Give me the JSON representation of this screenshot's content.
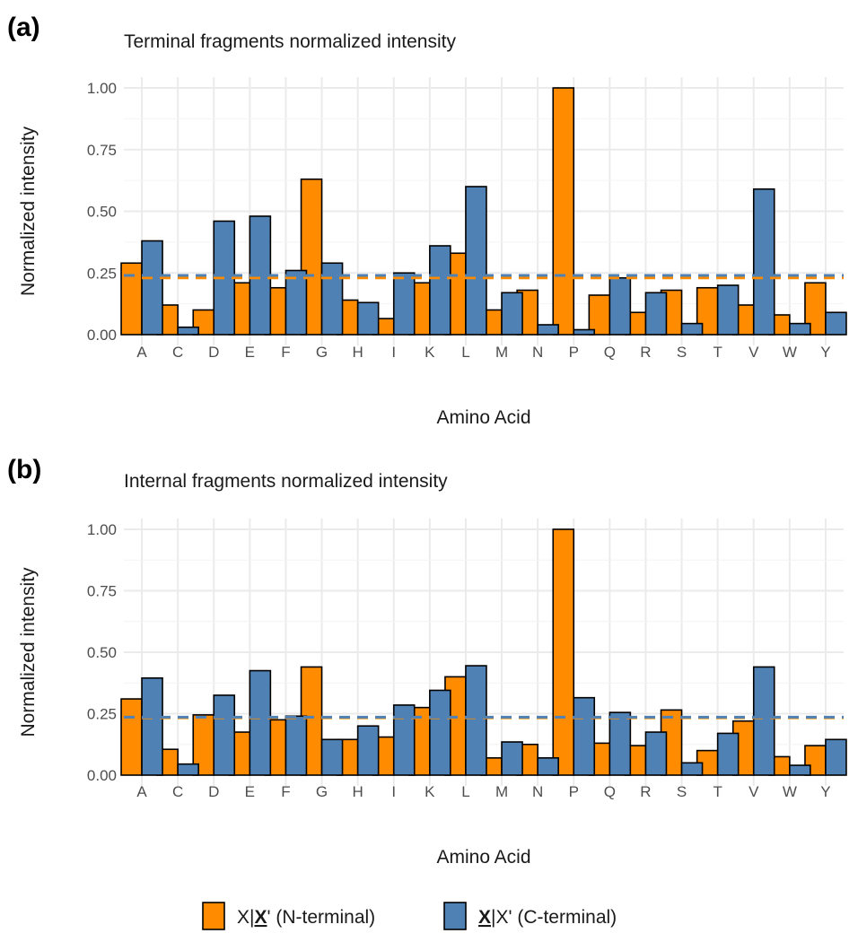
{
  "chart_data": [
    {
      "type": "bar",
      "panel_label": "(a)",
      "title": "Terminal fragments normalized intensity",
      "xlabel": "Amino Acid",
      "ylabel": "Normalized intensity",
      "ylim": [
        0,
        1.0
      ],
      "yticks": [
        "0.00",
        "0.25",
        "0.50",
        "0.75",
        "1.00"
      ],
      "ytick_values": [
        0,
        0.25,
        0.5,
        0.75,
        1.0
      ],
      "categories": [
        "A",
        "C",
        "D",
        "E",
        "F",
        "G",
        "H",
        "I",
        "K",
        "L",
        "M",
        "N",
        "P",
        "Q",
        "R",
        "S",
        "T",
        "V",
        "W",
        "Y"
      ],
      "series": [
        {
          "name": "N-terminal",
          "color": "#ff8c00",
          "values": [
            0.29,
            0.12,
            0.1,
            0.21,
            0.19,
            0.63,
            0.14,
            0.065,
            0.21,
            0.33,
            0.1,
            0.18,
            1.0,
            0.16,
            0.09,
            0.18,
            0.19,
            0.12,
            0.08,
            0.21
          ]
        },
        {
          "name": "C-terminal",
          "color": "#4f81b4",
          "values": [
            0.38,
            0.03,
            0.46,
            0.48,
            0.26,
            0.29,
            0.13,
            0.25,
            0.36,
            0.6,
            0.17,
            0.04,
            0.02,
            0.23,
            0.17,
            0.045,
            0.2,
            0.59,
            0.045,
            0.09
          ]
        }
      ],
      "reference_lines": [
        {
          "series": "N-terminal",
          "value": 0.23,
          "color": "#ff8c00"
        },
        {
          "series": "C-terminal",
          "value": 0.24,
          "color": "#4f81b4"
        }
      ],
      "grid": true
    },
    {
      "type": "bar",
      "panel_label": "(b)",
      "title": "Internal fragments normalized intensity",
      "xlabel": "Amino Acid",
      "ylabel": "Normalized intensity",
      "ylim": [
        0,
        1.0
      ],
      "yticks": [
        "0.00",
        "0.25",
        "0.50",
        "0.75",
        "1.00"
      ],
      "ytick_values": [
        0,
        0.25,
        0.5,
        0.75,
        1.0
      ],
      "categories": [
        "A",
        "C",
        "D",
        "E",
        "F",
        "G",
        "H",
        "I",
        "K",
        "L",
        "M",
        "N",
        "P",
        "Q",
        "R",
        "S",
        "T",
        "V",
        "W",
        "Y"
      ],
      "series": [
        {
          "name": "N-terminal",
          "color": "#ff8c00",
          "values": [
            0.31,
            0.105,
            0.245,
            0.175,
            0.225,
            0.44,
            0.145,
            0.155,
            0.275,
            0.4,
            0.07,
            0.125,
            1.0,
            0.13,
            0.12,
            0.265,
            0.1,
            0.22,
            0.075,
            0.12
          ]
        },
        {
          "name": "C-terminal",
          "color": "#4f81b4",
          "values": [
            0.395,
            0.045,
            0.325,
            0.425,
            0.24,
            0.145,
            0.2,
            0.285,
            0.345,
            0.445,
            0.135,
            0.07,
            0.315,
            0.255,
            0.175,
            0.05,
            0.17,
            0.44,
            0.04,
            0.145
          ]
        }
      ],
      "reference_lines": [
        {
          "series": "N-terminal",
          "value": 0.233,
          "color": "#ff8c00"
        },
        {
          "series": "C-terminal",
          "value": 0.236,
          "color": "#4f81b4"
        }
      ],
      "grid": true
    }
  ],
  "legend": {
    "position": "bottom",
    "items": [
      {
        "series": "N-terminal",
        "color": "#ff8c00",
        "prefix": "X|",
        "bold": "X",
        "suffix": "' (N-terminal)"
      },
      {
        "series": "C-terminal",
        "color": "#4f81b4",
        "prefix": "",
        "bold": "X",
        "suffix": "|X' (C-terminal)"
      }
    ]
  }
}
